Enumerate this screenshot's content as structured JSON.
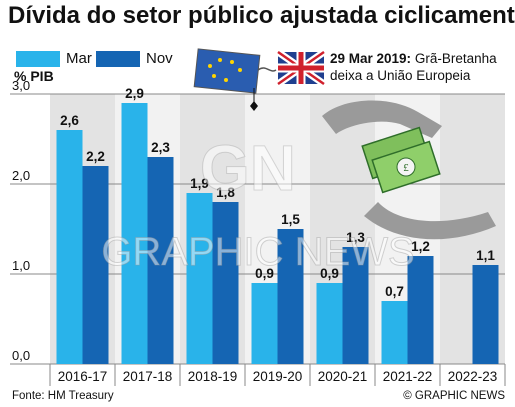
{
  "title": "Dívida do setor público ajustada ciclicamente",
  "legend": [
    {
      "label": "Mar",
      "color": "#29b3ea"
    },
    {
      "label": "Nov",
      "color": "#1565b3"
    }
  ],
  "unit_label": "% PIB",
  "annotation": {
    "date": "29 Mar 2019:",
    "line1": "Grã-Bretanha",
    "line2": "deixa a União Europeia"
  },
  "source": "Fonte: HM Treasury",
  "credit": "© GRAPHIC NEWS",
  "watermark": "GRAPHIC NEWS",
  "watermark_logo": "GN",
  "chart_data": {
    "type": "bar",
    "categories": [
      "2016-17",
      "2017-18",
      "2018-19",
      "2019-20",
      "2020-21",
      "2021-22",
      "2022-23"
    ],
    "series": [
      {
        "name": "Mar",
        "values": [
          2.6,
          2.9,
          1.9,
          0.9,
          0.9,
          0.7,
          null
        ],
        "labels": [
          "2,6",
          "2,9",
          "1,9",
          "0,9",
          "0,9",
          "0,7",
          ""
        ],
        "color": "#29b3ea"
      },
      {
        "name": "Nov",
        "values": [
          2.2,
          2.3,
          1.8,
          1.5,
          1.3,
          1.2,
          1.1
        ],
        "labels": [
          "2,2",
          "2,3",
          "1,8",
          "1,5",
          "1,3",
          "1,2",
          "1,1"
        ],
        "color": "#1565b3"
      }
    ],
    "yticks": [
      0,
      1,
      2,
      3
    ],
    "ytick_labels": [
      "0,0",
      "1,0",
      "2,0",
      "3,0"
    ],
    "ylim": [
      0,
      3
    ],
    "ylabel": "% PIB",
    "grid": true
  }
}
